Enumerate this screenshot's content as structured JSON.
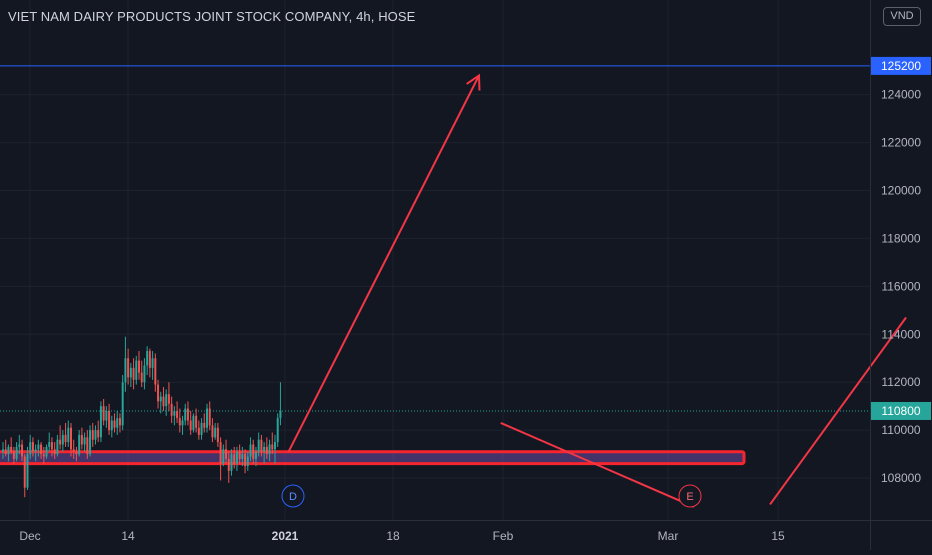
{
  "chart_data": {
    "type": "candlestick",
    "title": "VIET NAM DAIRY PRODUCTS JOINT STOCK COMPANY, 4h, HOSE",
    "currency": "VND",
    "ylim": [
      106500,
      127700
    ],
    "y_ticks": [
      108000,
      110000,
      112000,
      114000,
      116000,
      118000,
      120000,
      122000,
      124000
    ],
    "x_ticks": [
      "Dec",
      "14",
      "2021",
      "18",
      "Feb",
      "Mar",
      "15"
    ],
    "horizontal_line": {
      "value": 125200,
      "label": "125200"
    },
    "last_price": {
      "value": 110800,
      "label": "110800"
    },
    "support_zone": {
      "low": 108600,
      "high": 109100
    },
    "event_markers": [
      {
        "label": "D",
        "color": "#2962ff"
      },
      {
        "label": "E",
        "color": "#f23645"
      }
    ],
    "candles": [
      [
        109.1,
        109.5,
        108.8,
        109.2
      ],
      [
        109.2,
        109.6,
        108.9,
        109.0
      ],
      [
        109.0,
        109.4,
        108.7,
        109.3
      ],
      [
        109.3,
        109.7,
        109.0,
        109.1
      ],
      [
        109.1,
        109.3,
        108.6,
        108.8
      ],
      [
        108.8,
        109.5,
        108.7,
        109.3
      ],
      [
        109.3,
        109.8,
        109.0,
        109.4
      ],
      [
        109.4,
        109.6,
        108.7,
        108.9
      ],
      [
        108.9,
        109.0,
        107.2,
        107.6
      ],
      [
        107.6,
        109.3,
        107.5,
        109.0
      ],
      [
        109.0,
        109.8,
        108.8,
        109.5
      ],
      [
        109.5,
        109.7,
        108.9,
        109.1
      ],
      [
        109.1,
        109.4,
        108.7,
        109.2
      ],
      [
        109.2,
        109.6,
        108.9,
        109.4
      ],
      [
        109.4,
        109.5,
        108.8,
        109.0
      ],
      [
        109.0,
        109.3,
        108.6,
        108.9
      ],
      [
        108.9,
        109.4,
        108.8,
        109.3
      ],
      [
        109.3,
        109.9,
        109.1,
        109.5
      ],
      [
        109.5,
        109.7,
        108.9,
        109.2
      ],
      [
        109.2,
        109.5,
        108.8,
        109.0
      ],
      [
        109.0,
        109.8,
        108.9,
        109.6
      ],
      [
        109.6,
        110.2,
        109.2,
        109.4
      ],
      [
        109.4,
        110.0,
        109.1,
        109.8
      ],
      [
        109.8,
        110.3,
        109.3,
        109.5
      ],
      [
        109.5,
        110.4,
        109.3,
        110.1
      ],
      [
        110.1,
        110.3,
        108.9,
        109.2
      ],
      [
        109.2,
        109.6,
        108.8,
        109.1
      ],
      [
        109.1,
        109.3,
        108.7,
        109.0
      ],
      [
        109.0,
        110.0,
        108.9,
        109.8
      ],
      [
        109.8,
        110.1,
        109.2,
        109.4
      ],
      [
        109.4,
        109.9,
        109.1,
        109.7
      ],
      [
        109.7,
        110.0,
        108.8,
        109.0
      ],
      [
        109.0,
        110.2,
        108.9,
        110.0
      ],
      [
        110.0,
        110.3,
        109.3,
        109.6
      ],
      [
        109.6,
        110.2,
        109.4,
        110.0
      ],
      [
        110.0,
        110.4,
        109.5,
        109.7
      ],
      [
        109.7,
        111.2,
        109.5,
        111.0
      ],
      [
        111.0,
        111.3,
        110.2,
        110.4
      ],
      [
        110.4,
        111.0,
        110.1,
        110.8
      ],
      [
        110.8,
        111.1,
        109.8,
        110.0
      ],
      [
        110.0,
        110.6,
        109.7,
        110.4
      ],
      [
        110.4,
        110.7,
        109.9,
        110.1
      ],
      [
        110.1,
        110.8,
        109.8,
        110.5
      ],
      [
        110.5,
        110.7,
        109.9,
        110.2
      ],
      [
        110.2,
        112.3,
        110.0,
        112.0
      ],
      [
        112.0,
        113.9,
        111.6,
        113.0
      ],
      [
        113.0,
        113.4,
        111.9,
        112.2
      ],
      [
        112.2,
        112.8,
        111.8,
        112.6
      ],
      [
        112.6,
        113.0,
        111.7,
        112.1
      ],
      [
        112.1,
        113.1,
        111.9,
        112.9
      ],
      [
        112.9,
        113.3,
        112.1,
        112.4
      ],
      [
        112.4,
        112.9,
        111.8,
        112.0
      ],
      [
        112.0,
        113.0,
        111.7,
        112.7
      ],
      [
        112.7,
        113.5,
        112.3,
        113.3
      ],
      [
        113.3,
        113.4,
        112.2,
        112.6
      ],
      [
        112.6,
        113.3,
        112.1,
        113.0
      ],
      [
        113.0,
        113.2,
        111.6,
        111.9
      ],
      [
        111.9,
        112.1,
        110.9,
        111.2
      ],
      [
        111.2,
        111.6,
        110.7,
        111.4
      ],
      [
        111.4,
        111.8,
        110.8,
        111.0
      ],
      [
        111.0,
        111.7,
        110.6,
        111.5
      ],
      [
        111.5,
        112.0,
        110.8,
        111.1
      ],
      [
        111.1,
        111.4,
        110.3,
        110.6
      ],
      [
        110.6,
        111.0,
        110.2,
        110.8
      ],
      [
        110.8,
        111.2,
        110.3,
        110.5
      ],
      [
        110.5,
        110.9,
        109.9,
        110.2
      ],
      [
        110.2,
        110.6,
        109.8,
        110.4
      ],
      [
        110.4,
        111.1,
        110.2,
        110.9
      ],
      [
        110.9,
        111.2,
        110.2,
        110.4
      ],
      [
        110.4,
        110.8,
        109.8,
        110.0
      ],
      [
        110.0,
        110.7,
        109.9,
        110.6
      ],
      [
        110.6,
        110.9,
        109.9,
        110.1
      ],
      [
        110.1,
        110.4,
        109.6,
        109.8
      ],
      [
        109.8,
        110.5,
        109.6,
        110.3
      ],
      [
        110.3,
        110.7,
        109.9,
        110.1
      ],
      [
        110.1,
        111.1,
        109.9,
        110.9
      ],
      [
        110.9,
        111.2,
        110.0,
        110.2
      ],
      [
        110.2,
        110.5,
        109.5,
        109.7
      ],
      [
        109.7,
        110.3,
        109.6,
        110.1
      ],
      [
        110.1,
        110.3,
        109.3,
        109.5
      ],
      [
        109.5,
        109.7,
        107.9,
        108.6
      ],
      [
        108.6,
        109.4,
        108.5,
        109.2
      ],
      [
        109.2,
        109.6,
        108.6,
        108.8
      ],
      [
        108.8,
        109.1,
        107.8,
        108.3
      ],
      [
        108.3,
        109.2,
        108.1,
        109.0
      ],
      [
        109.0,
        109.3,
        108.4,
        108.6
      ],
      [
        108.6,
        109.3,
        108.3,
        109.1
      ],
      [
        109.1,
        109.4,
        108.6,
        108.8
      ],
      [
        108.8,
        109.3,
        108.5,
        109.0
      ],
      [
        109.0,
        109.2,
        108.2,
        108.5
      ],
      [
        108.5,
        109.1,
        108.3,
        108.9
      ],
      [
        108.9,
        109.7,
        108.7,
        109.4
      ],
      [
        109.4,
        109.6,
        108.6,
        108.8
      ],
      [
        108.8,
        109.3,
        108.5,
        109.1
      ],
      [
        109.1,
        109.9,
        108.9,
        109.6
      ],
      [
        109.6,
        109.8,
        108.9,
        109.1
      ],
      [
        109.1,
        109.5,
        108.6,
        109.3
      ],
      [
        109.3,
        109.7,
        108.8,
        109.0
      ],
      [
        109.0,
        109.6,
        108.7,
        109.4
      ],
      [
        109.4,
        109.9,
        109.0,
        109.2
      ],
      [
        109.2,
        109.8,
        108.6,
        109.5
      ],
      [
        109.5,
        110.7,
        109.3,
        110.5
      ],
      [
        110.5,
        112.0,
        110.2,
        110.8
      ]
    ],
    "annotations": [
      {
        "type": "arrow",
        "color": "#f23645",
        "from": [
          105,
          109100
        ],
        "to": [
          175,
          124800
        ]
      },
      {
        "type": "trendline",
        "color": "#f23645",
        "from": [
          183,
          110300
        ],
        "to": [
          254,
          106800
        ]
      },
      {
        "type": "trendline",
        "color": "#f23645",
        "from": [
          282,
          106900
        ],
        "to": [
          332,
          114700
        ]
      }
    ]
  }
}
